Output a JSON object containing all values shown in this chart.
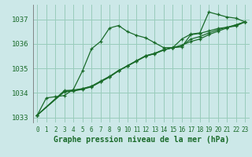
{
  "bg_color": "#cce8e8",
  "grid_color": "#99ccbb",
  "line_color": "#1a6b2a",
  "xlabel": "Graphe pression niveau de la mer (hPa)",
  "xlim": [
    -0.5,
    23.5
  ],
  "ylim": [
    1032.8,
    1037.6
  ],
  "yticks": [
    1033,
    1034,
    1035,
    1036,
    1037
  ],
  "xticks": [
    0,
    1,
    2,
    3,
    4,
    5,
    6,
    7,
    8,
    9,
    10,
    11,
    12,
    13,
    14,
    15,
    16,
    17,
    18,
    19,
    20,
    21,
    22,
    23
  ],
  "series": [
    {
      "x": [
        0,
        1,
        2,
        3,
        4,
        5,
        6,
        7,
        8,
        9,
        10,
        11,
        12,
        13,
        14,
        15,
        16,
        17,
        18,
        19,
        20,
        21,
        22,
        23
      ],
      "y": [
        1033.1,
        1033.8,
        1033.85,
        1033.9,
        1034.15,
        1034.9,
        1035.8,
        1036.1,
        1036.65,
        1036.75,
        1036.5,
        1036.35,
        1036.25,
        1036.05,
        1035.85,
        1035.85,
        1036.2,
        1036.4,
        1036.45,
        1037.3,
        1037.2,
        1037.1,
        1037.05,
        1036.9
      ]
    },
    {
      "x": [
        0,
        3,
        4,
        5,
        6,
        7,
        8,
        9,
        10,
        11,
        12,
        13,
        14,
        15,
        16,
        17,
        18,
        19,
        20,
        21,
        22,
        23
      ],
      "y": [
        1033.1,
        1034.1,
        1034.12,
        1034.18,
        1034.28,
        1034.48,
        1034.68,
        1034.92,
        1035.1,
        1035.3,
        1035.5,
        1035.6,
        1035.75,
        1035.85,
        1035.95,
        1036.1,
        1036.2,
        1036.38,
        1036.52,
        1036.65,
        1036.78,
        1036.9
      ]
    },
    {
      "x": [
        0,
        3,
        4,
        5,
        6,
        7,
        8,
        9,
        10,
        11,
        12,
        13,
        14,
        15,
        16,
        17,
        18,
        19,
        20,
        21,
        22,
        23
      ],
      "y": [
        1033.1,
        1034.05,
        1034.08,
        1034.15,
        1034.25,
        1034.45,
        1034.65,
        1034.9,
        1035.12,
        1035.32,
        1035.52,
        1035.62,
        1035.77,
        1035.85,
        1035.88,
        1036.38,
        1036.43,
        1036.53,
        1036.63,
        1036.68,
        1036.73,
        1036.9
      ]
    },
    {
      "x": [
        0,
        3,
        4,
        5,
        6,
        7,
        8,
        9,
        10,
        11,
        12,
        13,
        14,
        15,
        16,
        17,
        18,
        19,
        20,
        21,
        22,
        23
      ],
      "y": [
        1033.1,
        1034.08,
        1034.1,
        1034.17,
        1034.27,
        1034.47,
        1034.67,
        1034.91,
        1035.11,
        1035.31,
        1035.51,
        1035.61,
        1035.76,
        1035.85,
        1035.92,
        1036.2,
        1036.3,
        1036.45,
        1036.58,
        1036.68,
        1036.78,
        1036.9
      ]
    }
  ]
}
